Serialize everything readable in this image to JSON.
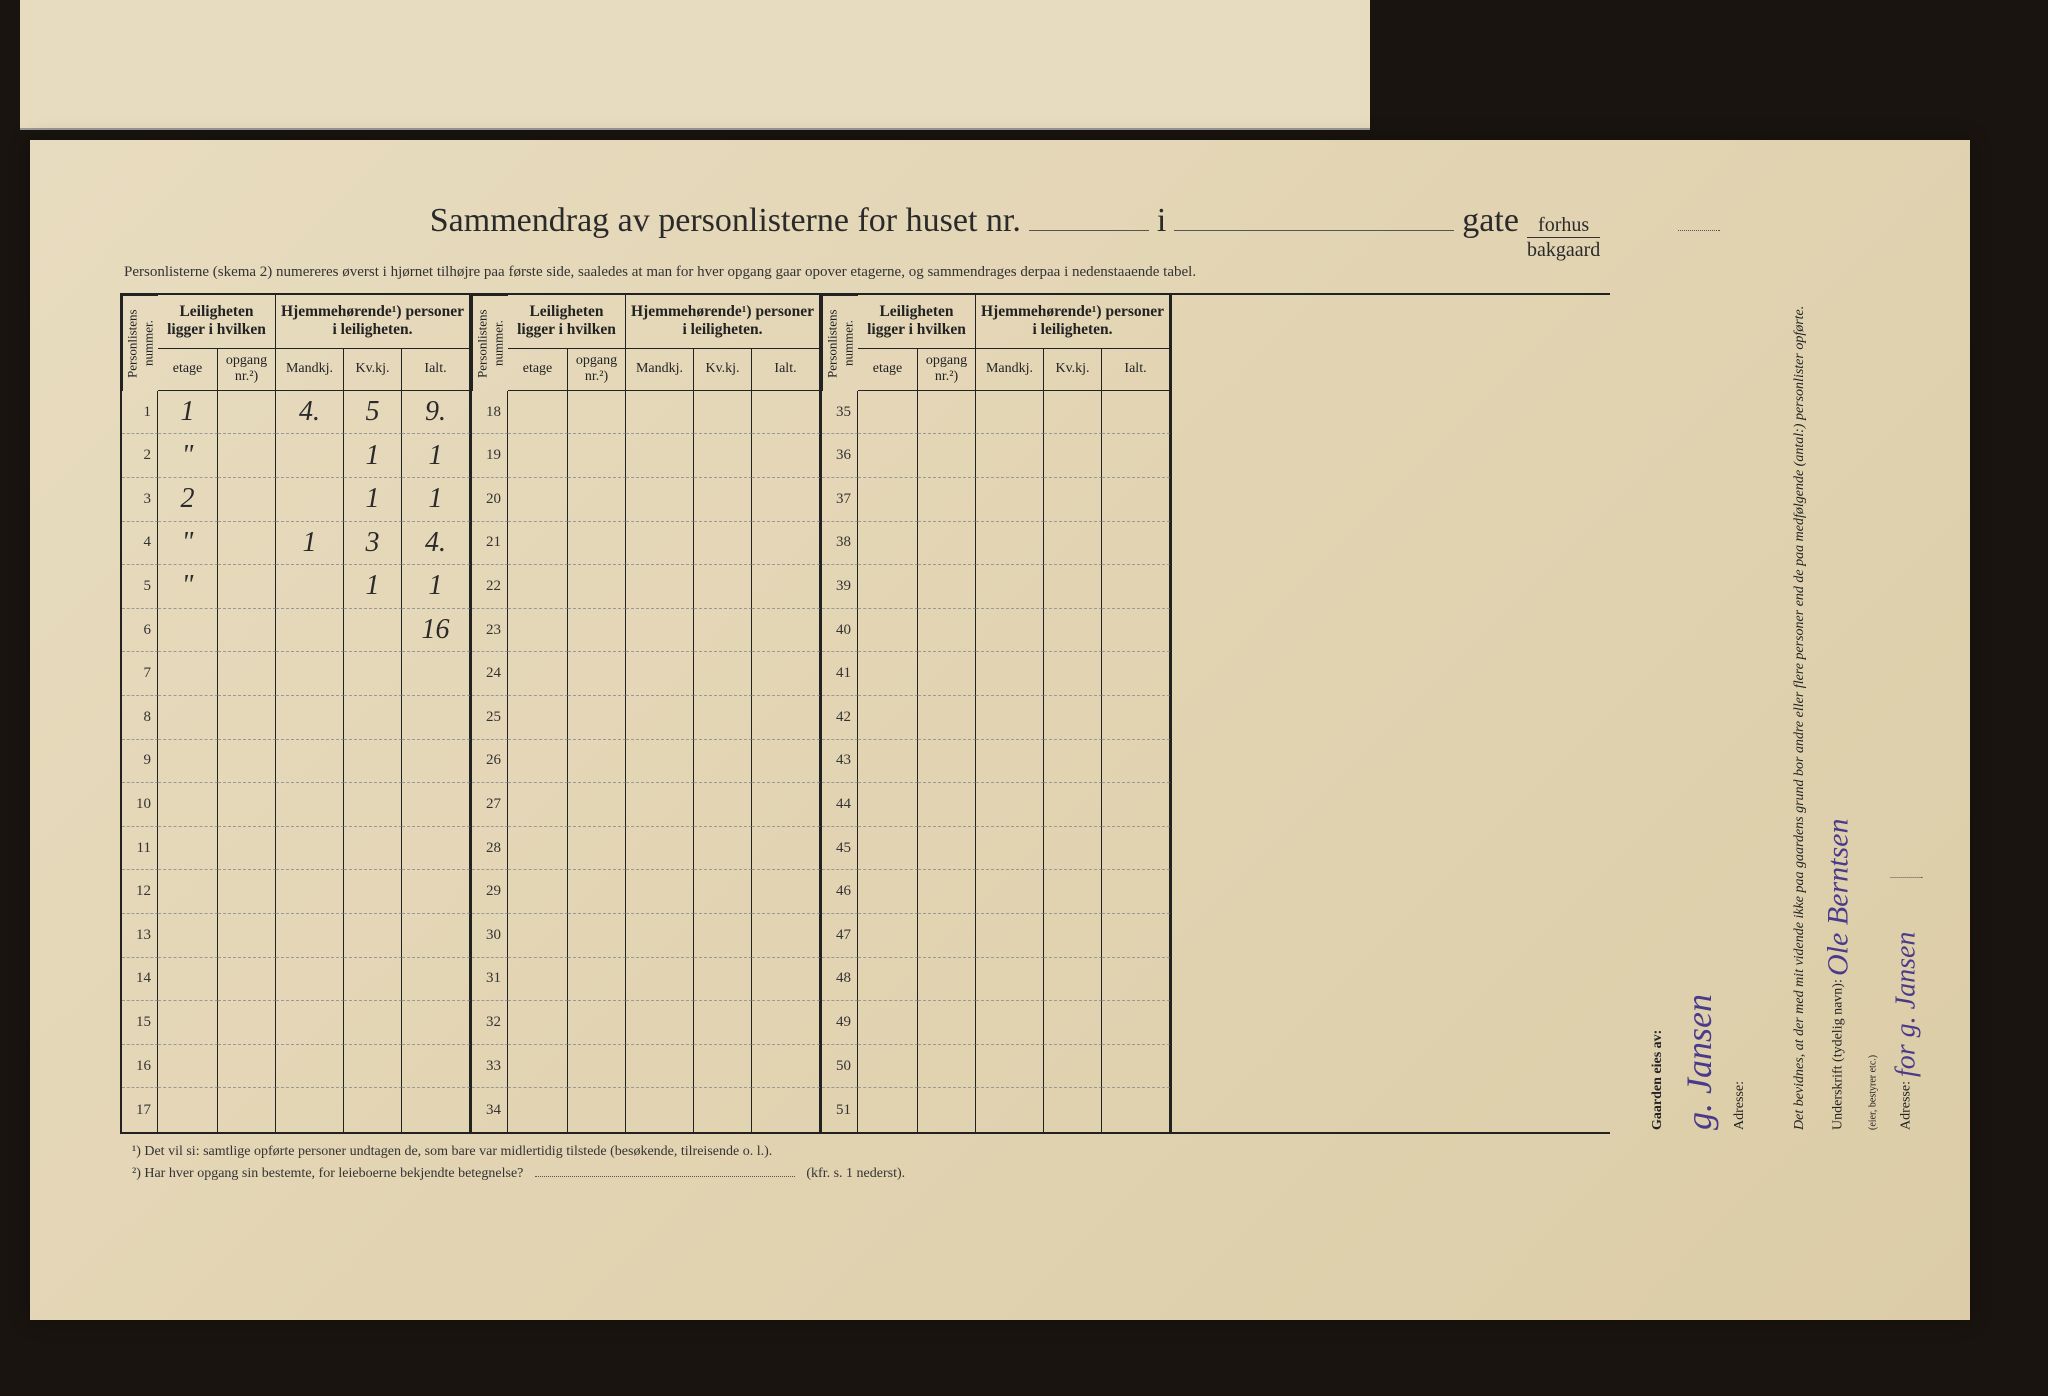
{
  "title": {
    "main": "Sammendrag av personlisterne for huset nr.",
    "mid": "i",
    "end": "gate",
    "fraction_top": "forhus",
    "fraction_bot": "bakgaard"
  },
  "subtitle": "Personlisterne (skema 2) numereres øverst i hjørnet tilhøjre paa første side, saaledes at man for hver opgang gaar opover etagerne, og sammendrages derpaa i nedenstaaende tabel.",
  "headers": {
    "personlistens": "Personlistens nummer.",
    "leilighet": "Leiligheten ligger i hvilken",
    "hjemme": "Hjemmehørende¹) personer i leiligheten.",
    "etage": "etage",
    "opgang": "opgang nr.²)",
    "mandkj": "Mandkj.",
    "kvkj": "Kv.kj.",
    "ialt": "Ialt."
  },
  "rows_section1": [
    {
      "n": "1",
      "etage": "1",
      "opg": "",
      "m": "4.",
      "k": "5",
      "i": "9."
    },
    {
      "n": "2",
      "etage": "\"",
      "opg": "",
      "m": "",
      "k": "1",
      "i": "1"
    },
    {
      "n": "3",
      "etage": "2",
      "opg": "",
      "m": "",
      "k": "1",
      "i": "1"
    },
    {
      "n": "4",
      "etage": "\"",
      "opg": "",
      "m": "1",
      "k": "3",
      "i": "4."
    },
    {
      "n": "5",
      "etage": "\"",
      "opg": "",
      "m": "",
      "k": "1",
      "i": "1"
    },
    {
      "n": "6",
      "etage": "",
      "opg": "",
      "m": "",
      "k": "",
      "i": "16"
    },
    {
      "n": "7",
      "etage": "",
      "opg": "",
      "m": "",
      "k": "",
      "i": ""
    },
    {
      "n": "8",
      "etage": "",
      "opg": "",
      "m": "",
      "k": "",
      "i": ""
    },
    {
      "n": "9",
      "etage": "",
      "opg": "",
      "m": "",
      "k": "",
      "i": ""
    },
    {
      "n": "10",
      "etage": "",
      "opg": "",
      "m": "",
      "k": "",
      "i": ""
    },
    {
      "n": "11",
      "etage": "",
      "opg": "",
      "m": "",
      "k": "",
      "i": ""
    },
    {
      "n": "12",
      "etage": "",
      "opg": "",
      "m": "",
      "k": "",
      "i": ""
    },
    {
      "n": "13",
      "etage": "",
      "opg": "",
      "m": "",
      "k": "",
      "i": ""
    },
    {
      "n": "14",
      "etage": "",
      "opg": "",
      "m": "",
      "k": "",
      "i": ""
    },
    {
      "n": "15",
      "etage": "",
      "opg": "",
      "m": "",
      "k": "",
      "i": ""
    },
    {
      "n": "16",
      "etage": "",
      "opg": "",
      "m": "",
      "k": "",
      "i": ""
    },
    {
      "n": "17",
      "etage": "",
      "opg": "",
      "m": "",
      "k": "",
      "i": ""
    }
  ],
  "rows_section2_nums": [
    "18",
    "19",
    "20",
    "21",
    "22",
    "23",
    "24",
    "25",
    "26",
    "27",
    "28",
    "29",
    "30",
    "31",
    "32",
    "33",
    "34"
  ],
  "rows_section3_nums": [
    "35",
    "36",
    "37",
    "38",
    "39",
    "40",
    "41",
    "42",
    "43",
    "44",
    "45",
    "46",
    "47",
    "48",
    "49",
    "50",
    "51"
  ],
  "footnotes": {
    "f1": "¹) Det vil si: samtlige opførte personer undtagen de, som bare var midlertidig tilstede (besøkende, tilreisende o. l.).",
    "f2": "²) Har hver opgang sin bestemte, for leieboerne bekjendte betegnelse?",
    "f2_suffix": "(kfr. s. 1 nederst)."
  },
  "right": {
    "gaarden_label": "Gaarden eies av:",
    "owner_sig": "g. Jansen",
    "adresse_label": "Adresse:",
    "declaration": "Det bevidnes, at der med mit vidende ikke paa gaardens grund bor andre eller flere personer end de paa medfølgende (antal:) personlister opførte.",
    "underskrift_label": "Underskrift (tydelig navn):",
    "underskrift_note": "(eier, bestyrer etc.)",
    "underskrift_sig": "Ole Berntsen",
    "second_sig": "for g. Jansen"
  },
  "colors": {
    "paper": "#e8dcc0",
    "ink": "#2a2a2a",
    "pen": "#4a3a8a",
    "rule": "#222222"
  }
}
